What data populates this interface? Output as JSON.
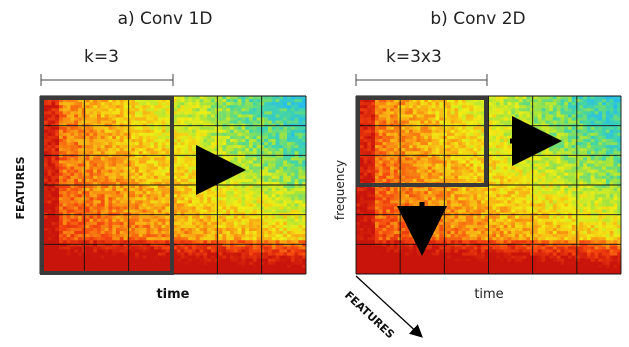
{
  "panel_a": {
    "title": "a) Conv 1D",
    "kernel_label": "k=3",
    "y_label": "FEATURES",
    "x_label": "time"
  },
  "panel_b": {
    "title": "b) Conv 2D",
    "kernel_label": "k=3x3",
    "y_label": "frequency",
    "x_label": "time",
    "depth_label": "FEATURES"
  },
  "colors": {
    "kernel_box": "#3a3a3a",
    "arrow": "#000000",
    "grid": "#111111",
    "spectrogram_low": "#e31a1c",
    "spectrogram_mid": "#ffee00",
    "spectrogram_high": "#3fd8c8"
  }
}
